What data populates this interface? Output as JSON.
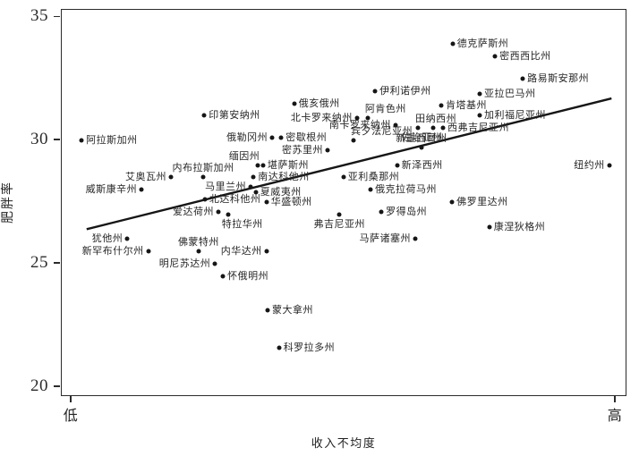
{
  "figure": {
    "background": "#ffffff",
    "ink_color": "#1e1e1e",
    "y_axis_title": "肥胖率",
    "x_axis_title": "收入不均度"
  },
  "chart_data": {
    "type": "scatter",
    "title": "",
    "xlabel": "收入不均度",
    "ylabel": "肥胖率",
    "xlim": [
      0,
      100
    ],
    "ylim": [
      19.6,
      35.29
    ],
    "y_ticks": [
      35,
      30,
      25,
      20
    ],
    "x_tick_labels": [
      "低",
      "高"
    ],
    "x_tick_pos": [
      1.7,
      97.9
    ],
    "grid": false,
    "legend": "none",
    "trend_line": {
      "x1": 4.4,
      "y1": 26.4,
      "x2": 97.2,
      "y2": 31.7
    },
    "points": [
      {
        "label": "德克萨斯州",
        "x": 69.1,
        "y": 33.9,
        "label_pos": "right"
      },
      {
        "label": "密西西比州",
        "x": 76.6,
        "y": 33.4,
        "label_pos": "right"
      },
      {
        "label": "路易斯安那州",
        "x": 81.5,
        "y": 32.5,
        "label_pos": "right"
      },
      {
        "label": "亚拉巴马州",
        "x": 73.9,
        "y": 31.9,
        "label_pos": "right"
      },
      {
        "label": "伊利诺伊州",
        "x": 55.4,
        "y": 32.0,
        "label_pos": "right"
      },
      {
        "label": "肯塔基州",
        "x": 67.1,
        "y": 31.4,
        "label_pos": "right"
      },
      {
        "label": "俄亥俄州",
        "x": 41.1,
        "y": 31.5,
        "label_pos": "right"
      },
      {
        "label": "阿肯色州",
        "x": 54.1,
        "y": 30.9,
        "label_pos": "above-right"
      },
      {
        "label": "印第安纳州",
        "x": 25.2,
        "y": 31.0,
        "label_pos": "right"
      },
      {
        "label": "加利福尼亚州",
        "x": 73.9,
        "y": 31.0,
        "label_pos": "right"
      },
      {
        "label": "北卡罗来纳州",
        "x": 52.2,
        "y": 30.9,
        "label_pos": "left"
      },
      {
        "label": "田纳西州",
        "x": 63.0,
        "y": 30.5,
        "label_pos": "above-right"
      },
      {
        "label": "南卡罗来纳州",
        "x": 59.0,
        "y": 30.6,
        "label_pos": "left"
      },
      {
        "label": "西弗吉尼亚州",
        "x": 67.4,
        "y": 30.5,
        "label_pos": "right"
      },
      {
        "label": "阿拉斯加州",
        "x": 3.5,
        "y": 30.0,
        "label_pos": "right"
      },
      {
        "label": "俄勒冈州",
        "x": 37.2,
        "y": 30.1,
        "label_pos": "left"
      },
      {
        "label": "密歇根州",
        "x": 38.8,
        "y": 30.1,
        "label_pos": "right"
      },
      {
        "label": "宾夕法尼亚州",
        "x": 51.6,
        "y": 30.0,
        "label_pos": "above-right"
      },
      {
        "label": "佐治亚州",
        "x": 65.7,
        "y": 30.5,
        "label_pos": "below-left"
      },
      {
        "label": "新墨西哥州",
        "x": 63.6,
        "y": 29.7,
        "label_pos": "above"
      },
      {
        "label": "密苏里州",
        "x": 47.0,
        "y": 29.6,
        "label_pos": "left"
      },
      {
        "label": "缅因州",
        "x": 34.7,
        "y": 29.0,
        "label_pos": "above-left"
      },
      {
        "label": "堪萨斯州",
        "x": 35.6,
        "y": 29.0,
        "label_pos": "right"
      },
      {
        "label": "新泽西州",
        "x": 59.3,
        "y": 29.0,
        "label_pos": "right"
      },
      {
        "label": "纽约州",
        "x": 96.8,
        "y": 29.0,
        "label_pos": "left"
      },
      {
        "label": "艾奥瓦州",
        "x": 19.3,
        "y": 28.5,
        "label_pos": "left"
      },
      {
        "label": "内布拉斯加州",
        "x": 25.0,
        "y": 28.5,
        "label_pos": "above"
      },
      {
        "label": "南达科他州",
        "x": 33.9,
        "y": 28.5,
        "label_pos": "right"
      },
      {
        "label": "亚利桑那州",
        "x": 49.8,
        "y": 28.5,
        "label_pos": "right"
      },
      {
        "label": "马里兰州",
        "x": 33.4,
        "y": 28.1,
        "label_pos": "left"
      },
      {
        "label": "威斯康辛州",
        "x": 14.1,
        "y": 28.0,
        "label_pos": "left"
      },
      {
        "label": "夏威夷州",
        "x": 34.3,
        "y": 27.9,
        "label_pos": "right"
      },
      {
        "label": "俄克拉荷马州",
        "x": 54.6,
        "y": 28.0,
        "label_pos": "right"
      },
      {
        "label": "北达科他州",
        "x": 25.3,
        "y": 27.6,
        "label_pos": "right"
      },
      {
        "label": "华盛顿州",
        "x": 36.2,
        "y": 27.5,
        "label_pos": "right"
      },
      {
        "label": "佛罗里达州",
        "x": 69.0,
        "y": 27.5,
        "label_pos": "right"
      },
      {
        "label": "爱达荷州",
        "x": 27.7,
        "y": 27.1,
        "label_pos": "left"
      },
      {
        "label": "特拉华州",
        "x": 29.4,
        "y": 27.0,
        "label_pos": "below-right"
      },
      {
        "label": "罗得岛州",
        "x": 56.5,
        "y": 27.1,
        "label_pos": "right"
      },
      {
        "label": "弗吉尼亚州",
        "x": 49.1,
        "y": 27.0,
        "label_pos": "below"
      },
      {
        "label": "康涅狄格州",
        "x": 75.6,
        "y": 26.5,
        "label_pos": "right"
      },
      {
        "label": "犹他州",
        "x": 11.6,
        "y": 26.0,
        "label_pos": "left"
      },
      {
        "label": "马萨诸塞州",
        "x": 62.5,
        "y": 26.0,
        "label_pos": "left"
      },
      {
        "label": "佛蒙特州",
        "x": 24.2,
        "y": 25.5,
        "label_pos": "above"
      },
      {
        "label": "新罕布什尔州",
        "x": 15.3,
        "y": 25.5,
        "label_pos": "left"
      },
      {
        "label": "内华达州",
        "x": 36.2,
        "y": 25.5,
        "label_pos": "left"
      },
      {
        "label": "明尼苏达州",
        "x": 27.1,
        "y": 25.0,
        "label_pos": "left"
      },
      {
        "label": "怀俄明州",
        "x": 28.5,
        "y": 24.5,
        "label_pos": "right"
      },
      {
        "label": "蒙大拿州",
        "x": 36.4,
        "y": 23.1,
        "label_pos": "right"
      },
      {
        "label": "科罗拉多州",
        "x": 38.4,
        "y": 21.6,
        "label_pos": "right"
      }
    ]
  }
}
